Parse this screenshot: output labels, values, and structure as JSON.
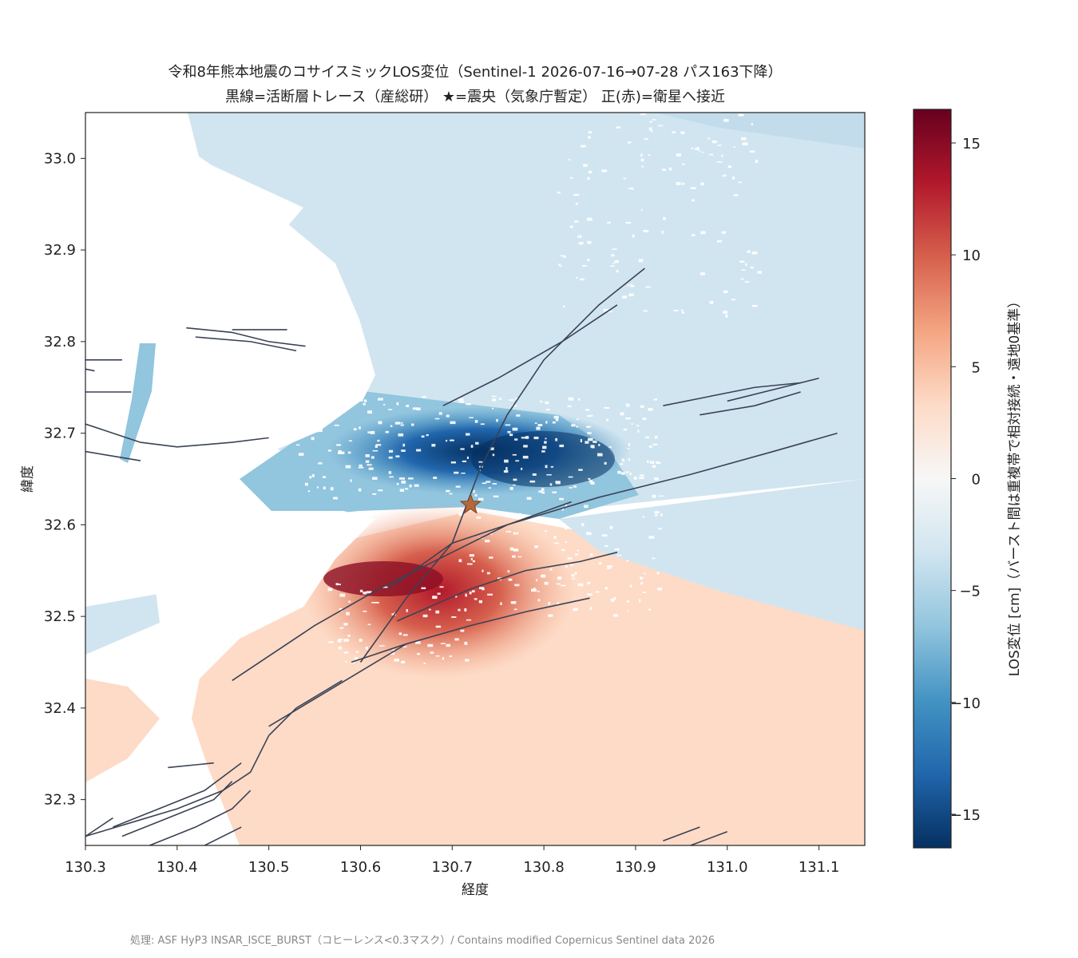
{
  "chart_data": {
    "type": "heatmap",
    "title": "令和8年熊本地震のコサイスミックLOS変位（Sentinel-1 2026-07-16→07-28 パス163下降）",
    "subtitle": "黒線=活断層トレース（産総研） ★=震央（気象庁暫定） 正(赤)=衛星へ接近",
    "xlabel": "経度",
    "ylabel": "緯度",
    "xlim": [
      130.3,
      131.15
    ],
    "ylim": [
      32.25,
      33.05
    ],
    "xticks": [
      "130.3",
      "130.4",
      "130.5",
      "130.6",
      "130.7",
      "130.8",
      "130.9",
      "131.0",
      "131.1"
    ],
    "yticks": [
      "32.3",
      "32.4",
      "32.5",
      "32.6",
      "32.7",
      "32.8",
      "32.9",
      "33.0"
    ],
    "colorbar": {
      "label": "LOS変位 [cm]（バースト間は重複帯で相対接続・遠地0基準）",
      "range": [
        -16.5,
        16.5
      ],
      "ticks": [
        "15",
        "10",
        "5",
        "0",
        "−5",
        "−10",
        "−15"
      ],
      "colormap": [
        "#67001f",
        "#b2182b",
        "#d6604d",
        "#f4a582",
        "#fddbc7",
        "#f7f7f7",
        "#d1e5f0",
        "#92c5de",
        "#4393c3",
        "#2166ac",
        "#053061"
      ]
    },
    "epicenter": {
      "lon": 130.72,
      "lat": 32.622,
      "color": "#b5683a"
    },
    "uplift_peak": {
      "lon": 130.64,
      "lat": 32.55,
      "value": 15
    },
    "subsidence_peak": {
      "lon": 130.66,
      "lat": 32.68,
      "value": -15
    },
    "fault_color": "#3a4255",
    "faults": [
      [
        [
          130.6,
          32.45
        ],
        [
          130.65,
          32.52
        ],
        [
          130.7,
          32.58
        ],
        [
          130.73,
          32.66
        ],
        [
          130.76,
          32.72
        ],
        [
          130.8,
          32.78
        ],
        [
          130.86,
          32.84
        ],
        [
          130.91,
          32.88
        ]
      ],
      [
        [
          130.46,
          32.43
        ],
        [
          130.55,
          32.49
        ],
        [
          130.62,
          32.53
        ],
        [
          130.69,
          32.565
        ],
        [
          130.76,
          32.6
        ],
        [
          130.83,
          32.625
        ]
      ],
      [
        [
          130.69,
          32.73
        ],
        [
          130.75,
          32.76
        ],
        [
          130.82,
          32.8
        ],
        [
          130.88,
          32.84
        ]
      ],
      [
        [
          130.63,
          32.53
        ],
        [
          130.7,
          32.58
        ],
        [
          130.76,
          32.6
        ],
        [
          130.86,
          32.63
        ],
        [
          130.96,
          32.655
        ],
        [
          131.05,
          32.68
        ],
        [
          131.12,
          32.7
        ]
      ],
      [
        [
          130.64,
          32.495
        ],
        [
          130.72,
          32.53
        ],
        [
          130.78,
          32.55
        ],
        [
          130.84,
          32.56
        ],
        [
          130.88,
          32.57
        ]
      ],
      [
        [
          130.59,
          32.45
        ],
        [
          130.65,
          32.47
        ],
        [
          130.72,
          32.49
        ],
        [
          130.78,
          32.505
        ],
        [
          130.85,
          32.52
        ]
      ],
      [
        [
          130.5,
          32.38
        ],
        [
          130.55,
          32.41
        ],
        [
          130.6,
          32.44
        ],
        [
          130.65,
          32.47
        ]
      ],
      [
        [
          130.5,
          32.37
        ],
        [
          130.53,
          32.4
        ],
        [
          130.58,
          32.43
        ]
      ],
      [
        [
          130.3,
          32.78
        ],
        [
          130.34,
          32.78
        ]
      ],
      [
        [
          130.3,
          32.745
        ],
        [
          130.35,
          32.745
        ]
      ],
      [
        [
          130.3,
          32.71
        ],
        [
          130.33,
          32.7
        ],
        [
          130.36,
          32.69
        ],
        [
          130.4,
          32.685
        ],
        [
          130.46,
          32.69
        ],
        [
          130.5,
          32.695
        ]
      ],
      [
        [
          130.3,
          32.68
        ],
        [
          130.33,
          32.675
        ],
        [
          130.36,
          32.67
        ]
      ],
      [
        [
          130.41,
          32.815
        ],
        [
          130.46,
          32.81
        ],
        [
          130.5,
          32.8
        ],
        [
          130.54,
          32.795
        ]
      ],
      [
        [
          130.42,
          32.805
        ],
        [
          130.48,
          32.8
        ],
        [
          130.53,
          32.79
        ]
      ],
      [
        [
          130.46,
          32.813
        ],
        [
          130.52,
          32.813
        ]
      ],
      [
        [
          130.3,
          32.77
        ],
        [
          130.31,
          32.768
        ]
      ],
      [
        [
          130.93,
          32.73
        ],
        [
          130.98,
          32.74
        ],
        [
          131.03,
          32.75
        ],
        [
          131.08,
          32.755
        ]
      ],
      [
        [
          130.97,
          32.72
        ],
        [
          131.03,
          32.73
        ],
        [
          131.08,
          32.745
        ]
      ],
      [
        [
          131.0,
          32.735
        ],
        [
          131.06,
          32.75
        ],
        [
          131.1,
          32.76
        ]
      ],
      [
        [
          130.3,
          32.26
        ],
        [
          130.35,
          32.275
        ],
        [
          130.4,
          32.29
        ],
        [
          130.45,
          32.31
        ],
        [
          130.48,
          32.33
        ],
        [
          130.5,
          32.37
        ]
      ],
      [
        [
          130.33,
          32.27
        ],
        [
          130.38,
          32.29
        ],
        [
          130.43,
          32.31
        ],
        [
          130.47,
          32.34
        ]
      ],
      [
        [
          130.34,
          32.26
        ],
        [
          130.39,
          32.28
        ],
        [
          130.44,
          32.3
        ],
        [
          130.46,
          32.32
        ]
      ],
      [
        [
          130.37,
          32.25
        ],
        [
          130.42,
          32.27
        ],
        [
          130.46,
          32.29
        ],
        [
          130.48,
          32.31
        ]
      ],
      [
        [
          130.43,
          32.25
        ],
        [
          130.47,
          32.27
        ]
      ],
      [
        [
          130.39,
          32.335
        ],
        [
          130.44,
          32.34
        ]
      ],
      [
        [
          130.3,
          32.26
        ],
        [
          130.33,
          32.28
        ]
      ],
      [
        [
          130.96,
          32.25
        ],
        [
          131.0,
          32.265
        ]
      ],
      [
        [
          130.93,
          32.255
        ],
        [
          130.97,
          32.27
        ]
      ]
    ]
  },
  "footer": "処理: ASF HyP3 INSAR_ISCE_BURST（コヒーレンス<0.3マスク）/ Contains modified Copernicus Sentinel data 2026"
}
